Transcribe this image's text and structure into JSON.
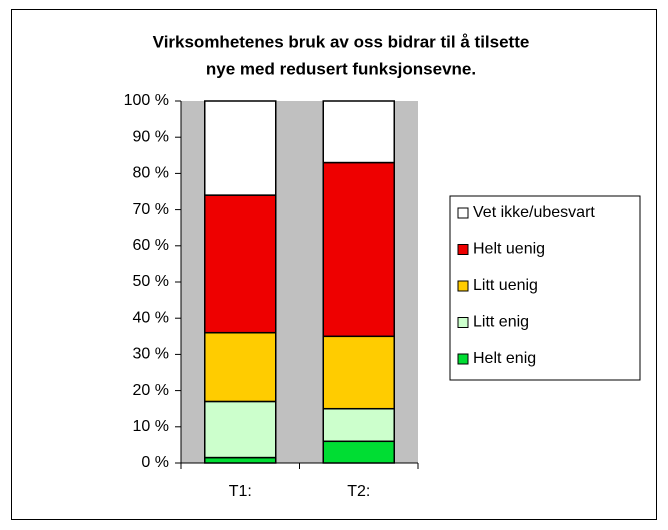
{
  "chart_data": {
    "type": "stacked_bar",
    "title": [
      "Virksomhetenes bruk av oss bidrar til å tilsette",
      "nye med redusert funksjonsevne."
    ],
    "categories": [
      "T1:",
      "T2:"
    ],
    "series": [
      {
        "name": "Helt enig",
        "color": "#00dd33",
        "values": [
          1.5,
          6
        ]
      },
      {
        "name": "Litt enig",
        "color": "#ccffcc",
        "values": [
          15.5,
          9
        ]
      },
      {
        "name": "Litt uenig",
        "color": "#ffcc00",
        "values": [
          19,
          20
        ]
      },
      {
        "name": "Helt uenig",
        "color": "#ee0000",
        "values": [
          38,
          48
        ]
      },
      {
        "name": "Vet ikke/ubesvart",
        "color": "#ffffff",
        "values": [
          26,
          17
        ]
      }
    ],
    "ylim": [
      0,
      100
    ],
    "yticks": [
      {
        "value": 0,
        "label": "0 %"
      },
      {
        "value": 10,
        "label": "10 %"
      },
      {
        "value": 20,
        "label": "20 %"
      },
      {
        "value": 30,
        "label": "30 %"
      },
      {
        "value": 40,
        "label": "40 %"
      },
      {
        "value": 50,
        "label": "50 %"
      },
      {
        "value": 60,
        "label": "60 %"
      },
      {
        "value": 70,
        "label": "70 %"
      },
      {
        "value": 80,
        "label": "80 %"
      },
      {
        "value": 90,
        "label": "90 %"
      },
      {
        "value": 100,
        "label": "100 %"
      }
    ],
    "plot_background": "#c0c0c0",
    "legend": "right"
  }
}
